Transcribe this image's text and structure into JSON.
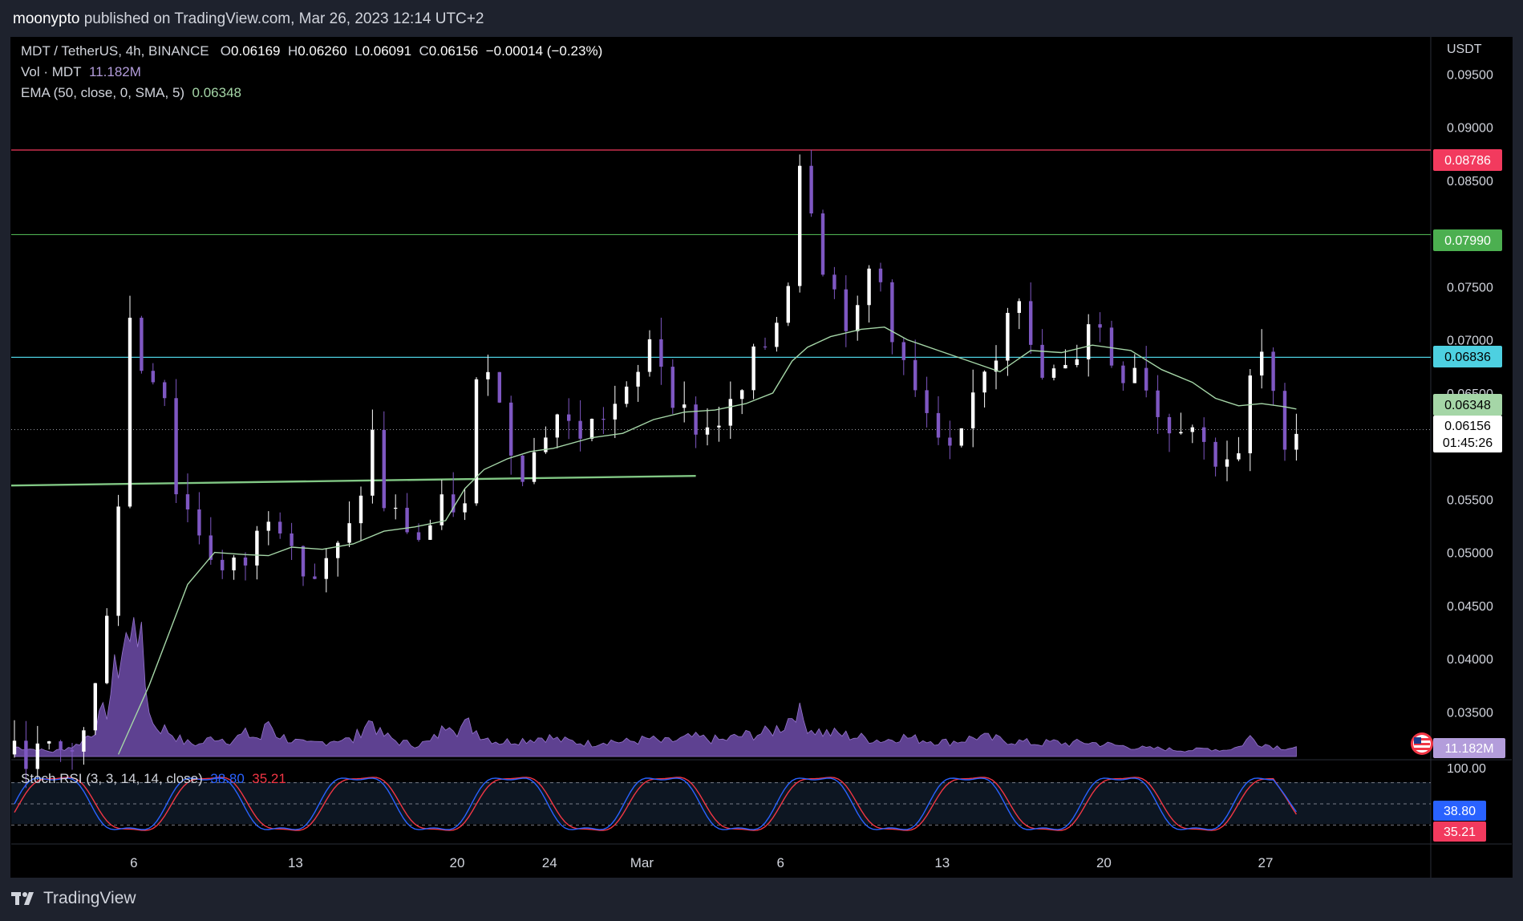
{
  "header": {
    "author": "moonypto",
    "published_text": "published on TradingView.com, Mar 26, 2023 12:14 UTC+2"
  },
  "footer": {
    "brand": "TradingView"
  },
  "legend": {
    "symbol": "MDT / TetherUS, 4h, BINANCE",
    "o_label": "O",
    "o_value": "0.06169",
    "h_label": "H",
    "h_value": "0.06260",
    "l_label": "L",
    "l_value": "0.06091",
    "c_label": "C",
    "c_value": "0.06156",
    "change": "−0.00014 (−0.23%)",
    "vol_label": "Vol · MDT",
    "vol_value": "11.182M",
    "ema_label": "EMA (50, close, 0, SMA, 5)",
    "ema_value": "0.06348",
    "stoch_label": "Stoch RSI (3, 3, 14, 14, close)",
    "stoch_k": "38.80",
    "stoch_d": "35.21"
  },
  "price_axis": {
    "currency": "USDT",
    "ticks": [
      "0.09500",
      "0.09000",
      "0.08500",
      "0.07500",
      "0.07000",
      "0.06500",
      "0.05500",
      "0.05000",
      "0.04500",
      "0.04000",
      "0.03500"
    ]
  },
  "badges": {
    "red_level": "0.08786",
    "green_level": "0.07990",
    "cyan_level": "0.06836",
    "ema": "0.06348",
    "last_price": "0.06156",
    "countdown": "01:45:26",
    "volume": "11.182M",
    "stoch_top": "100.00",
    "stoch_k": "38.80",
    "stoch_d": "35.21"
  },
  "time_axis": {
    "labels": [
      "6",
      "13",
      "20",
      "24",
      "Mar",
      "6",
      "13",
      "20",
      "27"
    ]
  },
  "colors": {
    "background": "#000000",
    "candle": "#ffffff",
    "candle_down": "#7e57c2",
    "ema": "#a5d6a7",
    "volume": "#7e57c2",
    "stoch_k": "#2962ff",
    "stoch_d": "#f23645",
    "red_line": "#f23a5e",
    "green_line": "#4caf50",
    "cyan_line": "#4dd0e1",
    "support_line": "#81c784"
  },
  "chart_data": {
    "type": "candlestick",
    "symbol": "MDT / TetherUS",
    "timeframe": "4h",
    "exchange": "BINANCE",
    "ylim": [
      0.0305,
      0.0985
    ],
    "horizontal_levels": [
      0.08786,
      0.0799,
      0.06836
    ],
    "support_trendline": [
      [
        0,
        0.0563
      ],
      [
        177,
        0.0572
      ]
    ],
    "candle_stride": 3,
    "key_points": [
      [
        0,
        0.031
      ],
      [
        12,
        0.0311
      ],
      [
        16,
        0.0318
      ],
      [
        18,
        0.033
      ],
      [
        22,
        0.0385
      ],
      [
        27,
        0.055
      ],
      [
        30,
        0.072
      ],
      [
        34,
        0.066
      ],
      [
        38,
        0.068
      ],
      [
        42,
        0.056
      ],
      [
        48,
        0.052
      ],
      [
        54,
        0.048
      ],
      [
        60,
        0.049
      ],
      [
        66,
        0.054
      ],
      [
        72,
        0.052
      ],
      [
        76,
        0.047
      ],
      [
        82,
        0.049
      ],
      [
        88,
        0.0525
      ],
      [
        93,
        0.061
      ],
      [
        96,
        0.0545
      ],
      [
        100,
        0.053
      ],
      [
        106,
        0.051
      ],
      [
        110,
        0.054
      ],
      [
        114,
        0.0545
      ],
      [
        117,
        0.054
      ],
      [
        119,
        0.063
      ],
      [
        122,
        0.07
      ],
      [
        125,
        0.065
      ],
      [
        128,
        0.061
      ],
      [
        130,
        0.059
      ],
      [
        133,
        0.0575
      ],
      [
        137,
        0.061
      ],
      [
        141,
        0.063
      ],
      [
        146,
        0.061
      ],
      [
        150,
        0.062
      ],
      [
        153,
        0.063
      ],
      [
        157,
        0.064
      ],
      [
        161,
        0.065
      ],
      [
        163,
        0.068
      ],
      [
        165,
        0.0705
      ],
      [
        168,
        0.068
      ],
      [
        172,
        0.064
      ],
      [
        176,
        0.062
      ],
      [
        181,
        0.0615
      ],
      [
        184,
        0.063
      ],
      [
        188,
        0.064
      ],
      [
        192,
        0.068
      ],
      [
        196,
        0.07
      ],
      [
        198,
        0.072
      ],
      [
        200,
        0.075
      ],
      [
        202,
        0.077
      ],
      [
        204,
        0.087
      ],
      [
        206,
        0.086
      ],
      [
        208,
        0.08
      ],
      [
        211,
        0.076
      ],
      [
        215,
        0.073
      ],
      [
        218,
        0.07
      ],
      [
        221,
        0.076
      ],
      [
        224,
        0.077
      ],
      [
        227,
        0.072
      ],
      [
        230,
        0.069
      ],
      [
        233,
        0.065
      ],
      [
        236,
        0.064
      ],
      [
        239,
        0.06
      ],
      [
        242,
        0.059
      ],
      [
        245,
        0.059
      ],
      [
        248,
        0.063
      ],
      [
        251,
        0.068
      ],
      [
        254,
        0.067
      ],
      [
        257,
        0.072
      ],
      [
        260,
        0.077
      ],
      [
        263,
        0.07
      ],
      [
        266,
        0.066
      ],
      [
        269,
        0.067
      ],
      [
        272,
        0.066
      ],
      [
        276,
        0.069
      ],
      [
        279,
        0.072
      ],
      [
        282,
        0.071
      ],
      [
        285,
        0.068
      ],
      [
        288,
        0.067
      ],
      [
        291,
        0.068
      ],
      [
        294,
        0.066
      ],
      [
        297,
        0.063
      ],
      [
        300,
        0.062
      ],
      [
        303,
        0.0625
      ],
      [
        306,
        0.062
      ],
      [
        309,
        0.06
      ],
      [
        312,
        0.059
      ],
      [
        315,
        0.059
      ],
      [
        318,
        0.0585
      ],
      [
        321,
        0.066
      ],
      [
        324,
        0.0685
      ],
      [
        327,
        0.064
      ],
      [
        330,
        0.061
      ],
      [
        333,
        0.0616
      ]
    ],
    "ema_points": [
      [
        27,
        0.031
      ],
      [
        35,
        0.0375
      ],
      [
        45,
        0.047
      ],
      [
        52,
        0.05
      ],
      [
        60,
        0.0498
      ],
      [
        66,
        0.0497
      ],
      [
        72,
        0.0505
      ],
      [
        80,
        0.0503
      ],
      [
        88,
        0.0508
      ],
      [
        96,
        0.052
      ],
      [
        104,
        0.0524
      ],
      [
        112,
        0.053
      ],
      [
        117,
        0.056
      ],
      [
        122,
        0.0578
      ],
      [
        128,
        0.0588
      ],
      [
        134,
        0.0595
      ],
      [
        140,
        0.0598
      ],
      [
        150,
        0.0608
      ],
      [
        158,
        0.0612
      ],
      [
        166,
        0.0625
      ],
      [
        174,
        0.0632
      ],
      [
        182,
        0.0634
      ],
      [
        190,
        0.064
      ],
      [
        197,
        0.065
      ],
      [
        202,
        0.068
      ],
      [
        206,
        0.0693
      ],
      [
        212,
        0.0703
      ],
      [
        220,
        0.071
      ],
      [
        226,
        0.0712
      ],
      [
        232,
        0.07
      ],
      [
        240,
        0.069
      ],
      [
        248,
        0.068
      ],
      [
        256,
        0.067
      ],
      [
        264,
        0.069
      ],
      [
        272,
        0.0688
      ],
      [
        280,
        0.0695
      ],
      [
        290,
        0.069
      ],
      [
        298,
        0.0672
      ],
      [
        306,
        0.066
      ],
      [
        312,
        0.0645
      ],
      [
        318,
        0.0638
      ],
      [
        324,
        0.064
      ],
      [
        330,
        0.0637
      ],
      [
        333,
        0.0635
      ]
    ],
    "volume_points_m": [
      [
        0,
        12
      ],
      [
        10,
        6
      ],
      [
        16,
        14
      ],
      [
        20,
        30
      ],
      [
        24,
        60
      ],
      [
        27,
        120
      ],
      [
        29,
        150
      ],
      [
        30,
        130
      ],
      [
        31,
        200
      ],
      [
        32,
        170
      ],
      [
        34,
        90
      ],
      [
        36,
        40
      ],
      [
        40,
        32
      ],
      [
        44,
        18
      ],
      [
        48,
        15
      ],
      [
        52,
        25
      ],
      [
        56,
        20
      ],
      [
        60,
        28
      ],
      [
        64,
        22
      ],
      [
        66,
        45
      ],
      [
        68,
        28
      ],
      [
        72,
        20
      ],
      [
        76,
        15
      ],
      [
        80,
        18
      ],
      [
        84,
        22
      ],
      [
        88,
        20
      ],
      [
        91,
        40
      ],
      [
        93,
        45
      ],
      [
        95,
        28
      ],
      [
        100,
        18
      ],
      [
        104,
        15
      ],
      [
        108,
        18
      ],
      [
        111,
        32
      ],
      [
        113,
        50
      ],
      [
        115,
        35
      ],
      [
        118,
        40
      ],
      [
        122,
        25
      ],
      [
        126,
        18
      ],
      [
        130,
        20
      ],
      [
        134,
        22
      ],
      [
        138,
        25
      ],
      [
        142,
        20
      ],
      [
        146,
        18
      ],
      [
        150,
        16
      ],
      [
        154,
        20
      ],
      [
        158,
        18
      ],
      [
        162,
        20
      ],
      [
        165,
        22
      ],
      [
        168,
        18
      ],
      [
        172,
        20
      ],
      [
        176,
        24
      ],
      [
        180,
        22
      ],
      [
        184,
        20
      ],
      [
        188,
        25
      ],
      [
        192,
        28
      ],
      [
        196,
        30
      ],
      [
        200,
        40
      ],
      [
        203,
        60
      ],
      [
        205,
        45
      ],
      [
        207,
        35
      ],
      [
        210,
        30
      ],
      [
        214,
        28
      ],
      [
        218,
        25
      ],
      [
        222,
        22
      ],
      [
        226,
        20
      ],
      [
        230,
        25
      ],
      [
        234,
        22
      ],
      [
        238,
        20
      ],
      [
        242,
        18
      ],
      [
        246,
        20
      ],
      [
        250,
        25
      ],
      [
        254,
        22
      ],
      [
        258,
        20
      ],
      [
        262,
        18
      ],
      [
        266,
        16
      ],
      [
        270,
        18
      ],
      [
        274,
        16
      ],
      [
        278,
        18
      ],
      [
        282,
        16
      ],
      [
        286,
        14
      ],
      [
        290,
        12
      ],
      [
        294,
        10
      ],
      [
        298,
        10
      ],
      [
        302,
        8
      ],
      [
        306,
        8
      ],
      [
        310,
        10
      ],
      [
        314,
        8
      ],
      [
        318,
        12
      ],
      [
        321,
        24
      ],
      [
        323,
        18
      ],
      [
        326,
        14
      ],
      [
        330,
        11
      ],
      [
        333,
        11.182
      ]
    ],
    "stoch_rsi": {
      "k": 38.8,
      "d": 35.21,
      "levels": [
        80,
        50,
        20
      ],
      "ylim": [
        0,
        100
      ]
    },
    "x_labels": [
      {
        "label": "6",
        "bar": 31
      },
      {
        "label": "13",
        "bar": 73
      },
      {
        "label": "20",
        "bar": 115
      },
      {
        "label": "24",
        "bar": 139
      },
      {
        "label": "Mar",
        "bar": 163
      },
      {
        "label": "6",
        "bar": 199
      },
      {
        "label": "13",
        "bar": 241
      },
      {
        "label": "20",
        "bar": 283
      },
      {
        "label": "27",
        "bar": 325
      }
    ],
    "last_bar": 333
  }
}
